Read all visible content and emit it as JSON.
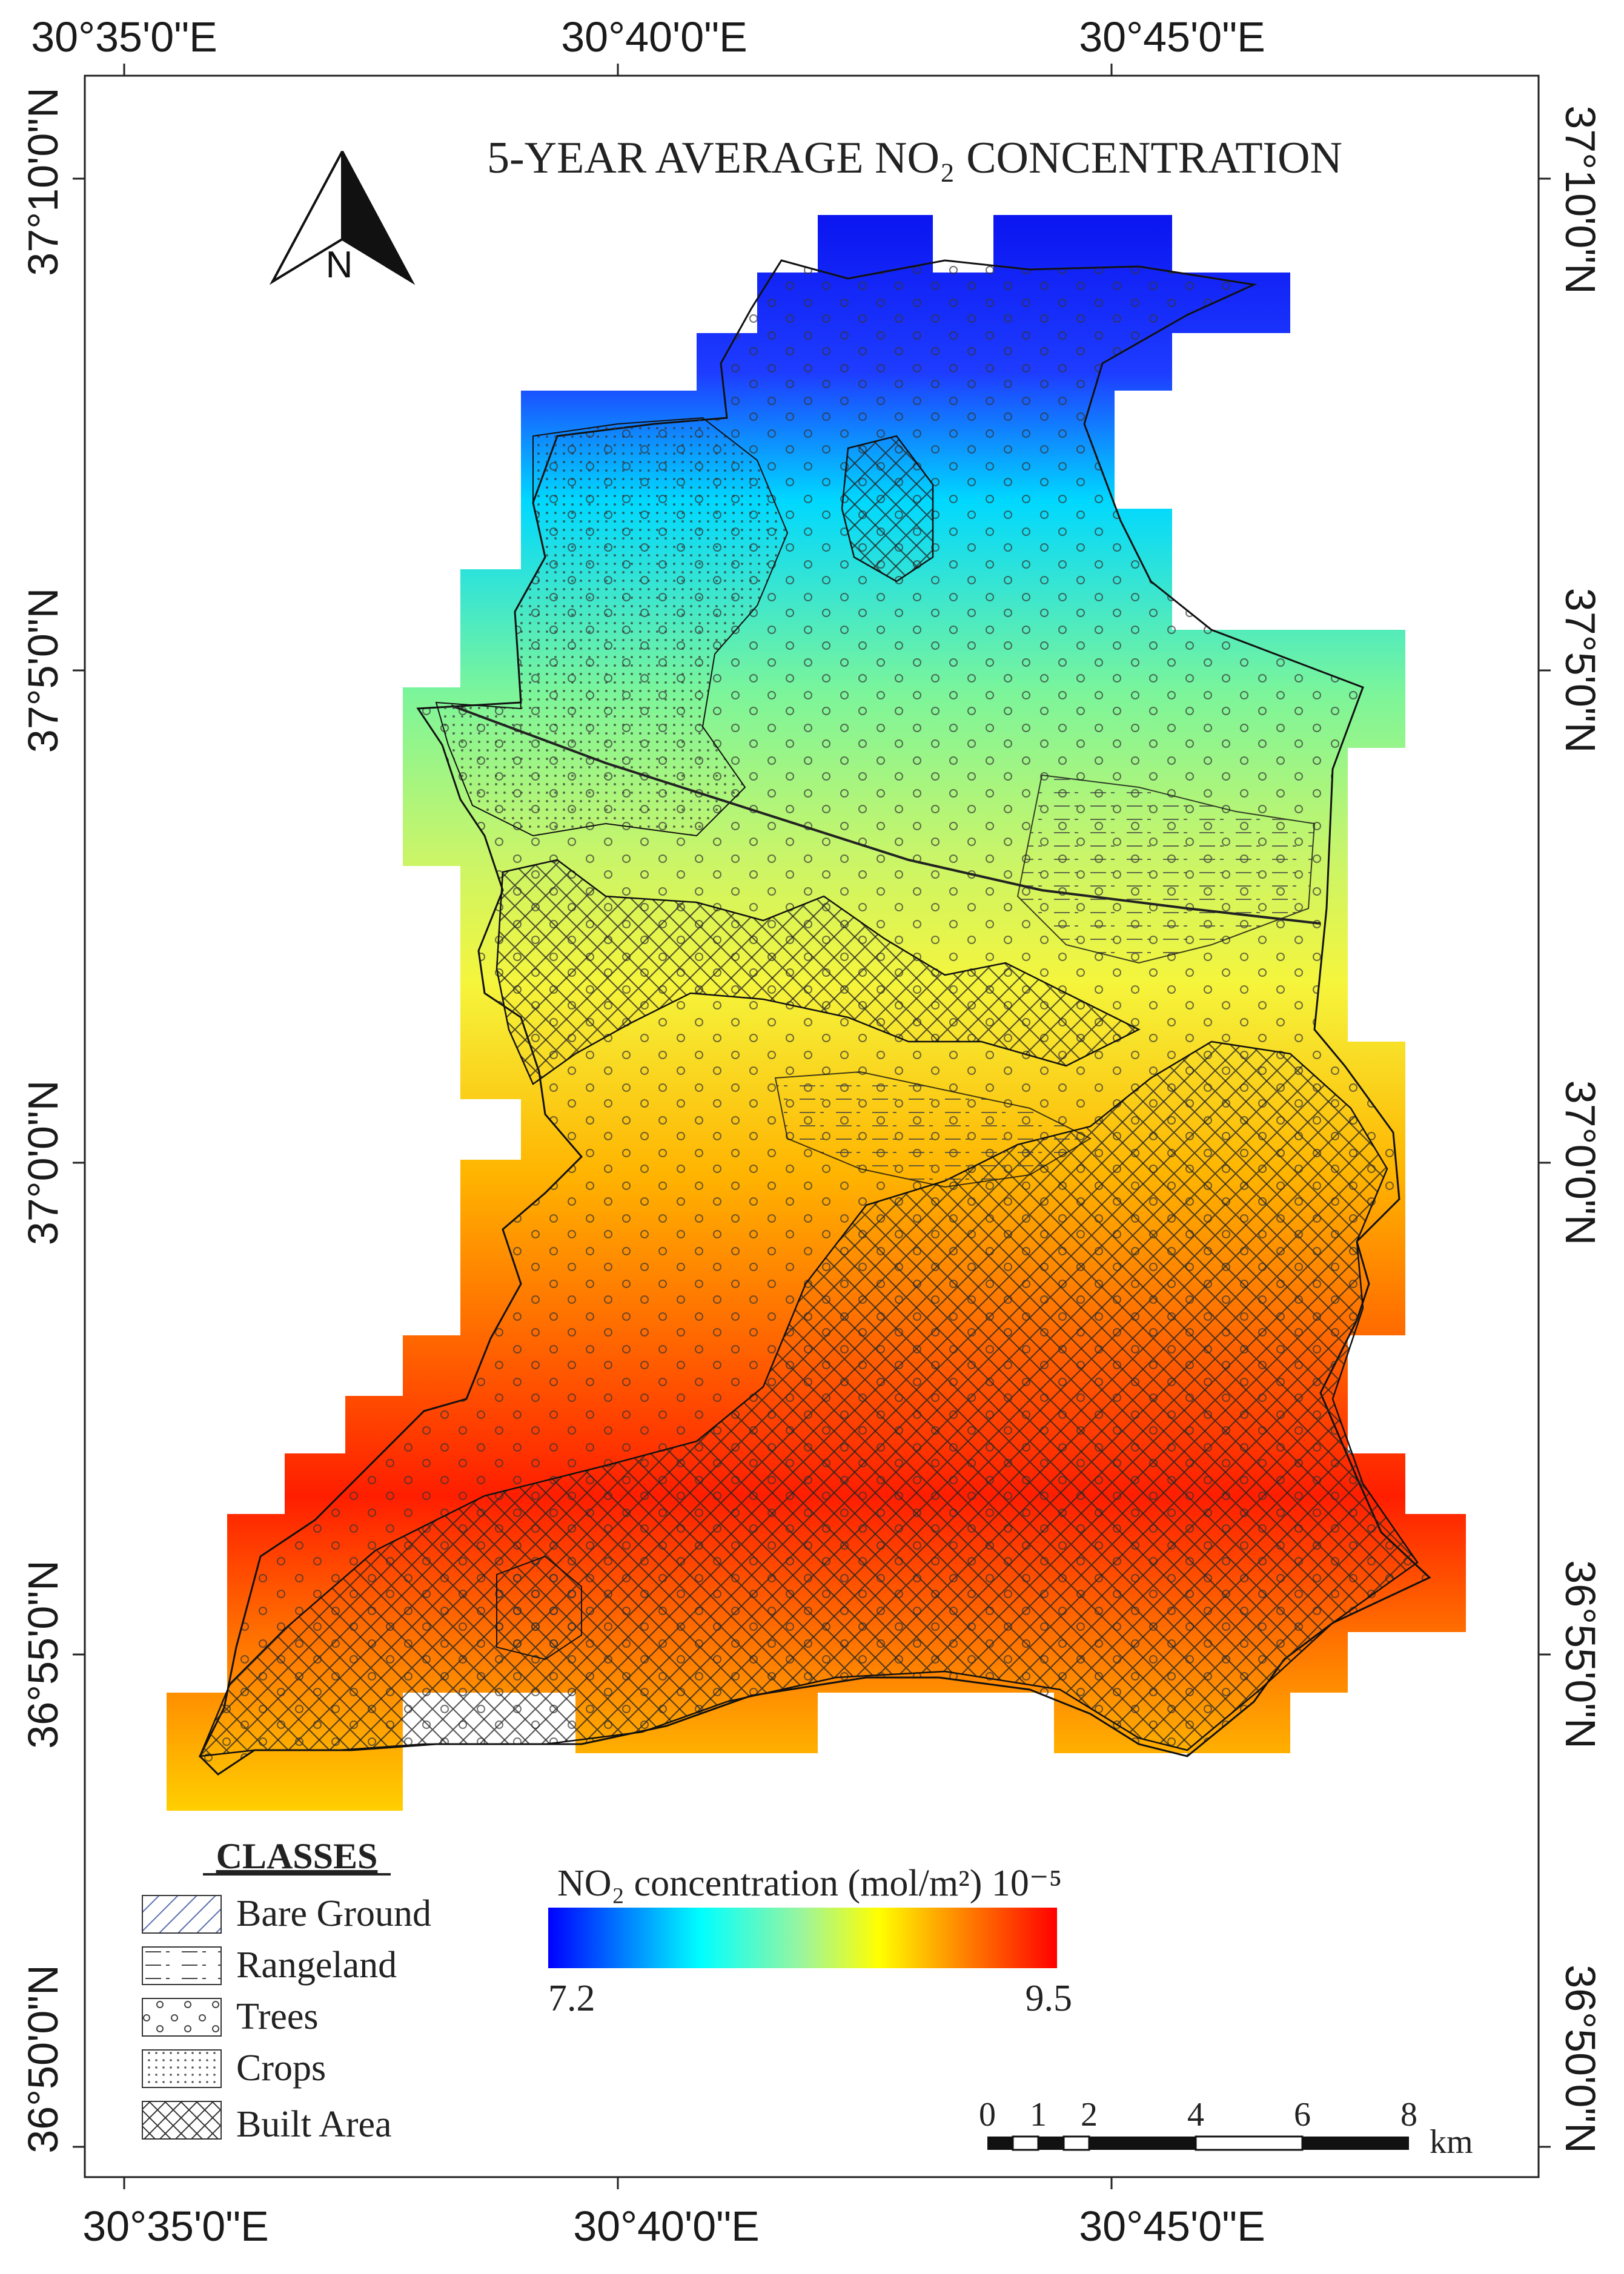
{
  "map": {
    "title": "5-YEAR AVERAGE NO₂ CONCENTRATION",
    "north_arrow_label": "N",
    "longitude_labels": [
      "30°35ʹ0\"E",
      "30°40ʹ0\"E",
      "30°45ʹ0\"E"
    ],
    "latitude_labels": [
      "37°10ʹ0\"N",
      "37°5ʹ0\"N",
      "37°0ʹ0\"N",
      "36°55ʹ0\"N",
      "36°50ʹ0\"N"
    ]
  },
  "legend": {
    "title": "CLASSES",
    "items": [
      {
        "label": "Bare Ground",
        "pattern": "diagonal-hatch",
        "color": "#5a6fb0"
      },
      {
        "label": "Rangeland",
        "pattern": "dash-dot-lines",
        "color": "#333333"
      },
      {
        "label": "Trees",
        "pattern": "small-circles",
        "color": "#333333"
      },
      {
        "label": "Crops",
        "pattern": "dots",
        "color": "#333333"
      },
      {
        "label": "Built Area",
        "pattern": "cross-hatch",
        "color": "#333333"
      }
    ]
  },
  "colorbar": {
    "label": "NO₂ concentration (mol/m²) 10⁻⁵",
    "min_label": "7.2",
    "max_label": "9.5",
    "min": 7.2,
    "max": 9.5,
    "colors": [
      "#0000ff",
      "#0080ff",
      "#00ffff",
      "#80ff80",
      "#ffff00",
      "#ff8000",
      "#ff0000"
    ]
  },
  "scale_bar": {
    "ticks": [
      "0",
      "1",
      "2",
      "4",
      "6",
      "8"
    ],
    "unit": "km"
  }
}
